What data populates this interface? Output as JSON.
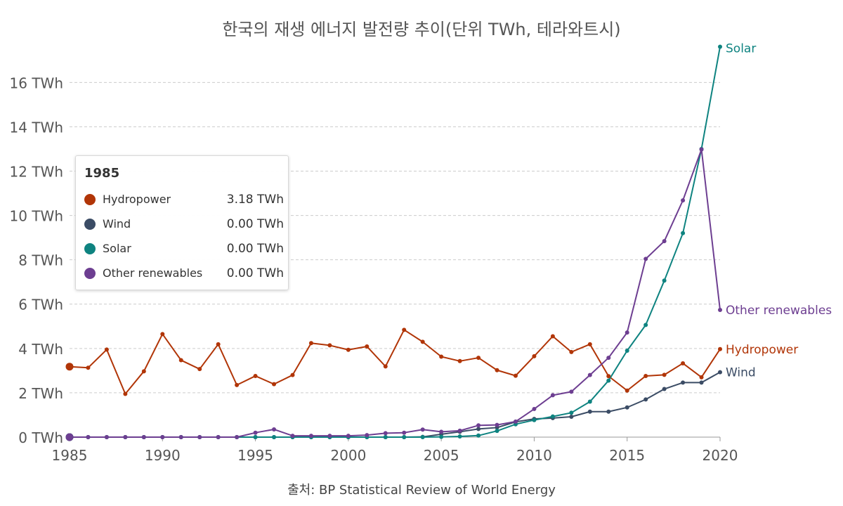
{
  "title": "한국의 재생 에너지 발전량 추이(단위 TWh, 테라와트시)",
  "source": "출처: BP Statistical Review of World Energy",
  "chart_data": {
    "type": "line",
    "x": [
      1985,
      1986,
      1987,
      1988,
      1989,
      1990,
      1991,
      1992,
      1993,
      1994,
      1995,
      1996,
      1997,
      1998,
      1999,
      2000,
      2001,
      2002,
      2003,
      2004,
      2005,
      2006,
      2007,
      2008,
      2009,
      2010,
      2011,
      2012,
      2013,
      2014,
      2015,
      2016,
      2017,
      2018,
      2019,
      2020
    ],
    "xlim": [
      1985,
      2020
    ],
    "ylim": [
      0,
      17.5
    ],
    "y_ticks": [
      0,
      2,
      4,
      6,
      8,
      10,
      12,
      14,
      16
    ],
    "y_tick_labels": [
      "0 TWh",
      "2 TWh",
      "4 TWh",
      "6 TWh",
      "8 TWh",
      "10 TWh",
      "12 TWh",
      "14 TWh",
      "16 TWh"
    ],
    "x_ticks": [
      1985,
      1990,
      1995,
      2000,
      2005,
      2010,
      2015,
      2020
    ],
    "x_tick_labels": [
      "1985",
      "1990",
      "1995",
      "2000",
      "2005",
      "2010",
      "2015",
      "2020"
    ],
    "grid": "horizontal dashed",
    "series": [
      {
        "name": "Hydropower",
        "color": "#b13507",
        "values": [
          3.18,
          3.13,
          3.95,
          1.95,
          2.97,
          4.65,
          3.47,
          3.07,
          4.19,
          2.35,
          2.76,
          2.39,
          2.8,
          4.24,
          4.14,
          3.94,
          4.09,
          3.19,
          4.84,
          4.3,
          3.63,
          3.43,
          3.58,
          3.02,
          2.77,
          3.65,
          4.55,
          3.84,
          4.19,
          2.75,
          2.1,
          2.76,
          2.81,
          3.33,
          2.7,
          3.97
        ]
      },
      {
        "name": "Wind",
        "color": "#3b4c65",
        "values": [
          0,
          0,
          0,
          0,
          0,
          0,
          0,
          0,
          0,
          0,
          0,
          0,
          0,
          0,
          0,
          0,
          0,
          0,
          0,
          0.01,
          0.13,
          0.24,
          0.37,
          0.43,
          0.69,
          0.82,
          0.86,
          0.92,
          1.15,
          1.15,
          1.34,
          1.7,
          2.17,
          2.46,
          2.46,
          2.93
        ]
      },
      {
        "name": "Solar",
        "color": "#0e8380",
        "values": [
          0,
          0,
          0,
          0,
          0,
          0,
          0,
          0,
          0,
          0,
          0,
          0,
          0,
          0,
          0,
          0,
          0,
          0,
          0,
          0,
          0.01,
          0.03,
          0.07,
          0.28,
          0.58,
          0.77,
          0.93,
          1.1,
          1.6,
          2.55,
          3.9,
          5.06,
          7.06,
          9.2,
          13.0,
          17.61
        ]
      },
      {
        "name": "Other renewables",
        "color": "#6d3e91",
        "values": [
          0,
          0,
          0,
          0,
          0,
          0,
          0,
          0,
          0,
          0,
          0.2,
          0.35,
          0.06,
          0.06,
          0.06,
          0.06,
          0.09,
          0.18,
          0.2,
          0.34,
          0.24,
          0.29,
          0.53,
          0.55,
          0.7,
          1.27,
          1.89,
          2.05,
          2.8,
          3.58,
          4.72,
          8.04,
          8.84,
          10.68,
          12.98,
          5.74
        ]
      }
    ],
    "end_labels": [
      {
        "series": "Solar",
        "text": "Solar"
      },
      {
        "series": "Other renewables",
        "text": "Other renewables"
      },
      {
        "series": "Hydropower",
        "text": "Hydropower"
      },
      {
        "series": "Wind",
        "text": "Wind"
      }
    ],
    "tooltip": {
      "year": "1985",
      "rows": [
        {
          "name": "Hydropower",
          "value": "3.18 TWh",
          "color": "#b13507"
        },
        {
          "name": "Wind",
          "value": "0.00 TWh",
          "color": "#3b4c65"
        },
        {
          "name": "Solar",
          "value": "0.00 TWh",
          "color": "#0e8380"
        },
        {
          "name": "Other renewables",
          "value": "0.00 TWh",
          "color": "#6d3e91"
        }
      ]
    }
  }
}
